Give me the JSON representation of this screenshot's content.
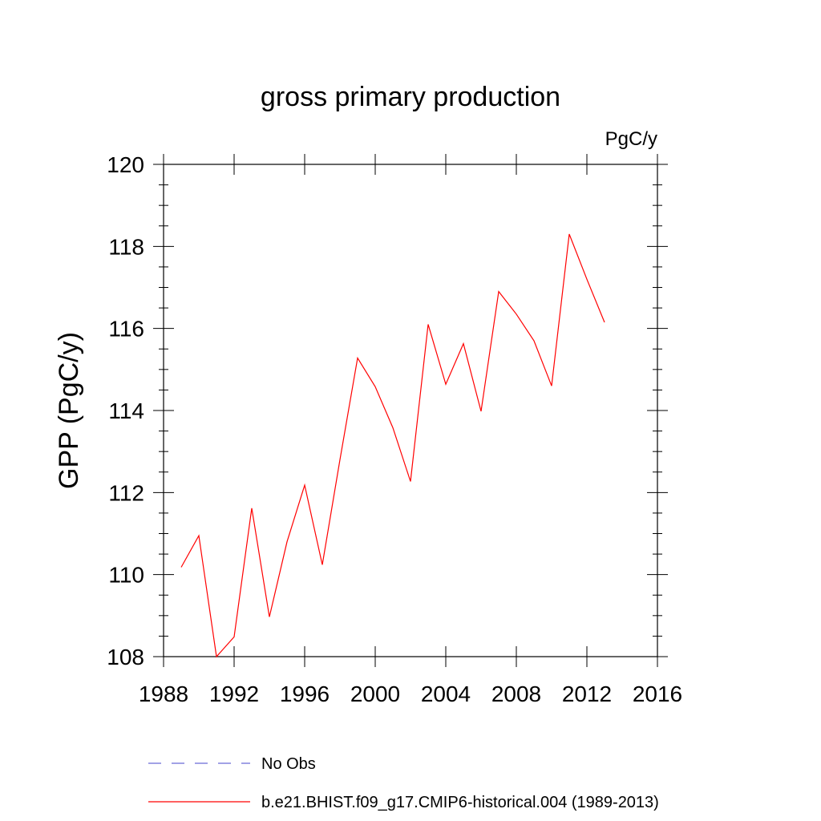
{
  "chart_data": {
    "type": "line",
    "title": "gross primary production",
    "units": "PgC/y",
    "ylabel": "GPP  (PgC/y)",
    "xlabel": "",
    "xlim": [
      1988,
      2016
    ],
    "ylim": [
      108,
      120
    ],
    "x_ticks": [
      1988,
      1992,
      1996,
      2000,
      2004,
      2008,
      2012,
      2016
    ],
    "x_tick_labels": [
      "1988",
      "1992",
      "1996",
      "2000",
      "2004",
      "2008",
      "2012",
      "2016"
    ],
    "y_ticks": [
      108,
      110,
      112,
      114,
      116,
      118,
      120
    ],
    "y_tick_labels": [
      "108",
      "110",
      "112",
      "114",
      "116",
      "118",
      "120"
    ],
    "grid": false,
    "legend_position": "bottom",
    "series": [
      {
        "name": "b.e21.BHIST.f09_g17.CMIP6-historical.004 (1989-2013)",
        "color": "#ff0000",
        "style": "solid",
        "x": [
          1989,
          1990,
          1991,
          1992,
          1993,
          1994,
          1995,
          1996,
          1997,
          1998,
          1999,
          2000,
          2001,
          2002,
          2003,
          2004,
          2005,
          2006,
          2007,
          2008,
          2009,
          2010,
          2011,
          2012,
          2013
        ],
        "y": [
          110.18,
          110.95,
          108.0,
          108.48,
          111.62,
          108.97,
          110.8,
          112.18,
          110.24,
          112.8,
          115.28,
          114.58,
          113.58,
          112.27,
          116.1,
          114.64,
          115.63,
          113.98,
          116.9,
          116.35,
          115.7,
          114.6,
          118.3,
          117.2,
          116.15
        ]
      },
      {
        "name": "No Obs",
        "color": "#6b6bd6",
        "style": "dashed",
        "x": [],
        "y": []
      }
    ]
  }
}
